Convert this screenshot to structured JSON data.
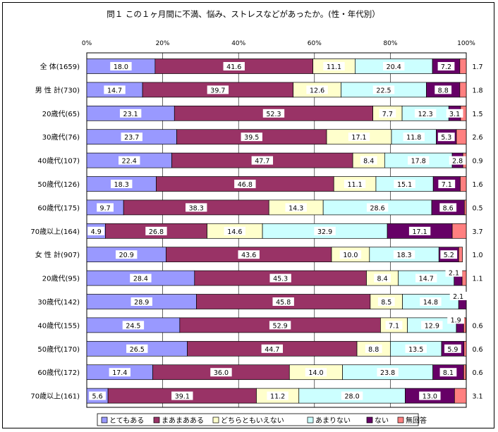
{
  "chart_data": {
    "type": "bar",
    "orientation": "horizontal",
    "stacked": "percent",
    "title": "問１ この１ヶ月間に不満、悩み、ストレスなどがあったか。(性・年代別）",
    "x_tick_labels": [
      "0%",
      "20%",
      "40%",
      "60%",
      "80%",
      "100%"
    ],
    "xlim": [
      0,
      100
    ],
    "legend_position": "bottom",
    "categories": [
      "全 体(1659)",
      "男 性 計(730)",
      "20歳代(65)",
      "30歳代(76)",
      "40歳代(107)",
      "50歳代(126)",
      "60歳代(175)",
      "70歳以上(164)",
      "女 性 計(907)",
      "20歳代(95)",
      "30歳代(142)",
      "40歳代(155)",
      "50歳代(170)",
      "60歳代(172)",
      "70歳以上(161)"
    ],
    "series": [
      {
        "name": "とてもある",
        "color": "#9999ff",
        "values": [
          18.0,
          14.7,
          23.1,
          23.7,
          22.4,
          18.3,
          9.7,
          4.9,
          20.9,
          28.4,
          28.9,
          24.5,
          26.5,
          17.4,
          5.6
        ]
      },
      {
        "name": "まあまあある",
        "color": "#993366",
        "values": [
          41.6,
          39.7,
          52.3,
          39.5,
          47.7,
          46.8,
          38.3,
          26.8,
          43.6,
          45.3,
          45.8,
          52.9,
          44.7,
          36.0,
          39.1
        ]
      },
      {
        "name": "どちらともいえない",
        "color": "#ffffcc",
        "values": [
          11.1,
          12.6,
          7.7,
          17.1,
          8.4,
          11.1,
          14.3,
          14.6,
          10.0,
          8.4,
          8.5,
          7.1,
          8.8,
          14.0,
          11.2
        ]
      },
      {
        "name": "あまりない",
        "color": "#ccffff",
        "values": [
          20.4,
          22.5,
          12.3,
          11.8,
          17.8,
          15.1,
          28.6,
          32.9,
          18.3,
          14.7,
          14.8,
          12.9,
          13.5,
          23.8,
          28.0
        ]
      },
      {
        "name": "ない",
        "color": "#660066",
        "values": [
          7.2,
          8.8,
          3.1,
          5.3,
          2.8,
          7.1,
          8.6,
          17.1,
          5.2,
          2.1,
          2.1,
          1.9,
          5.9,
          8.1,
          13.0
        ]
      },
      {
        "name": "無回答",
        "color": "#ff8080",
        "values": [
          1.7,
          1.8,
          1.5,
          2.6,
          0.9,
          1.6,
          0.5,
          3.7,
          1.0,
          1.1,
          0.0,
          0.6,
          0.6,
          0.6,
          3.1
        ]
      }
    ],
    "data_label_text": [
      [
        "18.0",
        "41.6",
        "11.1",
        "20.4",
        "7.2",
        "1.7"
      ],
      [
        "14.7",
        "39.7",
        "12.6",
        "22.5",
        "8.8",
        "1.8"
      ],
      [
        "23.1",
        "52.3",
        "7.7",
        "12.3",
        "3.1",
        "1.5"
      ],
      [
        "23.7",
        "39.5",
        "17.1",
        "11.8",
        "5.3",
        "2.6"
      ],
      [
        "22.4",
        "47.7",
        "8.4",
        "17.8",
        "2.8",
        "0.9"
      ],
      [
        "18.3",
        "46.8",
        "11.1",
        "15.1",
        "7.1",
        "1.6"
      ],
      [
        "9.7",
        "38.3",
        "14.3",
        "28.6",
        "8.6",
        "0.5"
      ],
      [
        "4.9",
        "26.8",
        "14.6",
        "32.9",
        "17.1",
        "3.7"
      ],
      [
        "20.9",
        "43.6",
        "10.0",
        "18.3",
        "5.2",
        "1.0"
      ],
      [
        "28.4",
        "45.3",
        "8.4",
        "14.7",
        "2.1",
        "1.1"
      ],
      [
        "28.9",
        "45.8",
        "8.5",
        "14.8",
        "2.1",
        ""
      ],
      [
        "24.5",
        "52.9",
        "7.1",
        "12.9",
        "1.9",
        "0.6"
      ],
      [
        "26.5",
        "44.7",
        "8.8",
        "13.5",
        "5.9",
        "0.6"
      ],
      [
        "17.4",
        "36.0",
        "14.0",
        "23.8",
        "8.1",
        "0.6"
      ],
      [
        "5.6",
        "39.1",
        "11.2",
        "28.0",
        "13.0",
        "3.1"
      ]
    ]
  }
}
